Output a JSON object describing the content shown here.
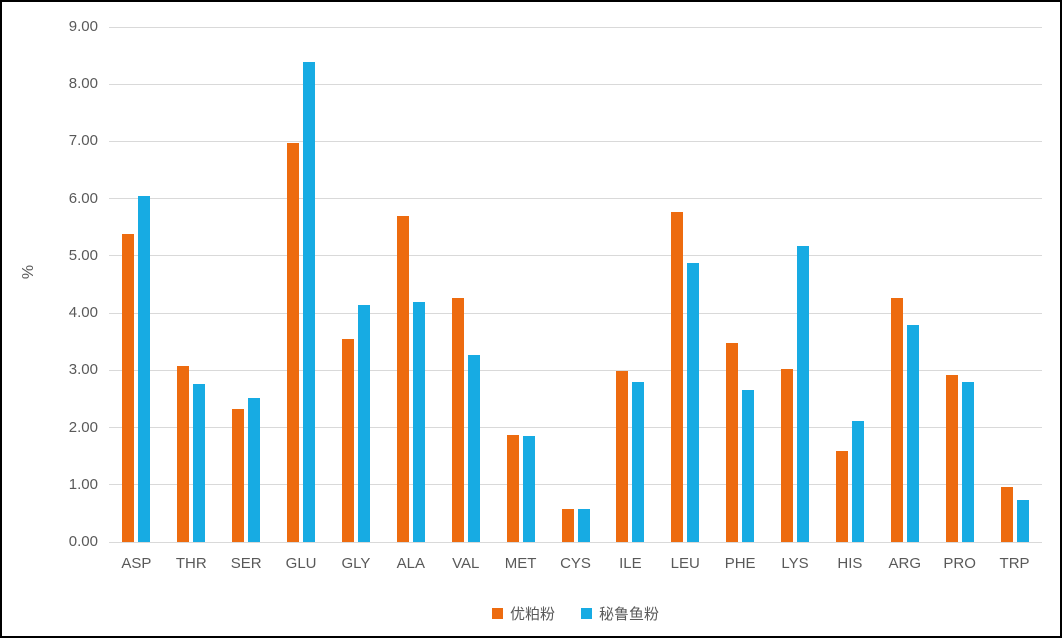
{
  "chart_data": {
    "type": "bar",
    "categories": [
      "ASP",
      "THR",
      "SER",
      "GLU",
      "GLY",
      "ALA",
      "VAL",
      "MET",
      "CYS",
      "ILE",
      "LEU",
      "PHE",
      "LYS",
      "HIS",
      "ARG",
      "PRO",
      "TRP"
    ],
    "series": [
      {
        "name": "优粕粉",
        "color": "#ED6B0F",
        "values": [
          5.38,
          3.07,
          2.32,
          6.97,
          3.55,
          5.69,
          4.27,
          1.87,
          0.58,
          2.99,
          5.77,
          3.47,
          3.02,
          1.59,
          4.27,
          2.92,
          0.97
        ]
      },
      {
        "name": "秘鲁鱼粉",
        "color": "#17ABE3",
        "values": [
          6.05,
          2.77,
          2.52,
          8.38,
          4.14,
          4.2,
          3.26,
          1.85,
          0.57,
          2.8,
          4.87,
          2.66,
          5.18,
          2.11,
          3.79,
          2.8,
          0.73
        ]
      }
    ],
    "title": "",
    "xlabel": "",
    "ylabel": "%",
    "ylim": [
      0,
      9
    ],
    "ytick_step": 1,
    "ytick_decimals": 2,
    "grid": true,
    "legend_position": "bottom",
    "colors": {
      "gridline": "#D9D9D9",
      "axis_text": "#595959",
      "background": "#FFFFFF",
      "border": "#000000"
    }
  }
}
